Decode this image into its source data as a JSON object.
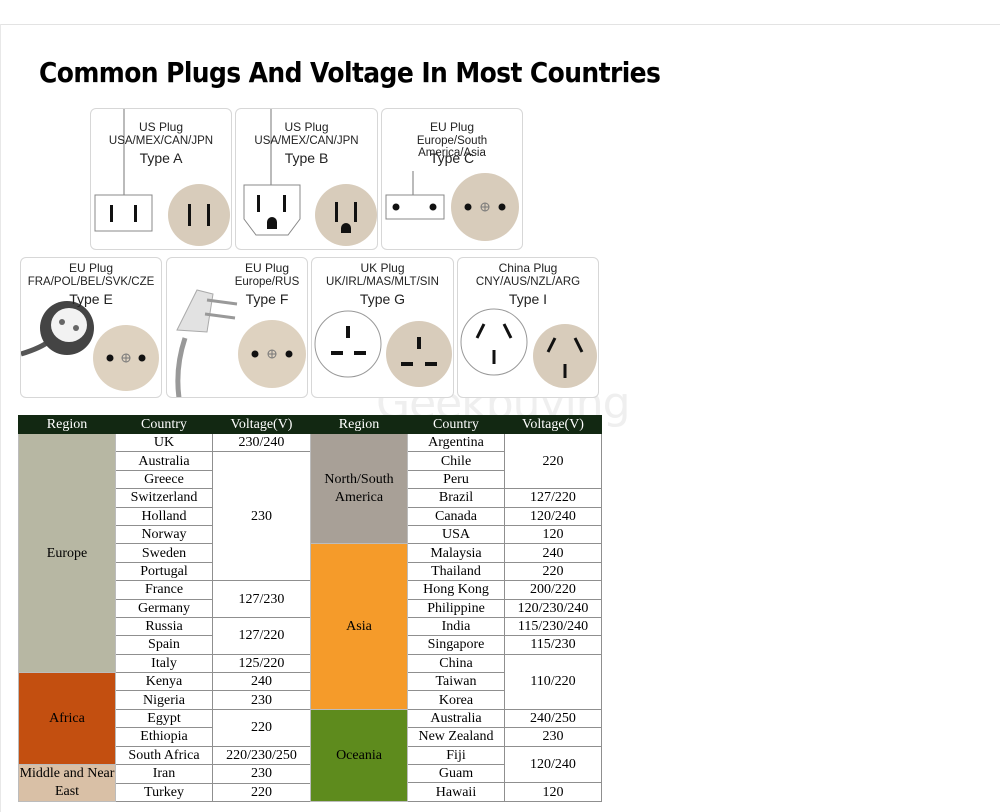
{
  "title": "Common Plugs And Voltage In Most Countries",
  "watermark": "Geekbuying",
  "plugs": [
    {
      "name": "US Plug",
      "countries": "USA/MEX/CAN/JPN",
      "type": "Type A"
    },
    {
      "name": "US Plug",
      "countries": "USA/MEX/CAN/JPN",
      "type": "Type B"
    },
    {
      "name": "EU Plug",
      "countries": "Europe/South America/Asia",
      "type": "Type C"
    },
    {
      "name": "EU Plug",
      "countries": "FRA/POL/BEL/SVK/CZE",
      "type": "Type E"
    },
    {
      "name": "EU Plug",
      "countries": "Europe/RUS",
      "type": "Type F"
    },
    {
      "name": "UK Plug",
      "countries": "UK/IRL/MAS/MLT/SIN",
      "type": "Type G"
    },
    {
      "name": "China Plug",
      "countries": "CNY/AUS/NZL/ARG",
      "type": "Type I"
    }
  ],
  "table": {
    "headers": {
      "region": "Region",
      "country": "Country",
      "voltage": "Voltage(V)"
    },
    "colors": {
      "header": "#122812",
      "europe": "#b7b7a3",
      "africa": "#c34f10",
      "middle_east": "#d9c0a6",
      "americas": "#a8a097",
      "asia": "#f59b2a",
      "oceania": "#5e8b1d"
    },
    "left": {
      "regions": {
        "europe": "Europe",
        "africa": "Africa",
        "middle_east": "Middle and Near East"
      },
      "countries": [
        "UK",
        "Australia",
        "Greece",
        "Switzerland",
        "Holland",
        "Norway",
        "Sweden",
        "Portugal",
        "France",
        "Germany",
        "Russia",
        "Spain",
        "Italy",
        "Kenya",
        "Nigeria",
        "Egypt",
        "Ethiopia",
        "South Africa",
        "Iran",
        "Turkey"
      ],
      "voltages": [
        "230/240",
        "230",
        "127/230",
        "127/220",
        "125/220",
        "240",
        "230",
        "220",
        "220/230/250",
        "230",
        "220"
      ]
    },
    "right": {
      "regions": {
        "americas": "North/South America",
        "asia": "Asia",
        "oceania": "Oceania"
      },
      "countries": [
        "Argentina",
        "Chile",
        "Peru",
        "Brazil",
        "Canada",
        "USA",
        "Malaysia",
        "Thailand",
        "Hong Kong",
        "Philippine",
        "India",
        "Singapore",
        "China",
        "Taiwan",
        "Korea",
        "Australia",
        "New Zealand",
        "Fiji",
        "Guam",
        "Hawaii"
      ],
      "voltages": [
        "220",
        "127/220",
        "120/240",
        "120",
        "240",
        "220",
        "200/220",
        "120/230/240",
        "115/230/240",
        "115/230",
        "110/220",
        "240/250",
        "230",
        "120/240",
        "120"
      ]
    }
  }
}
